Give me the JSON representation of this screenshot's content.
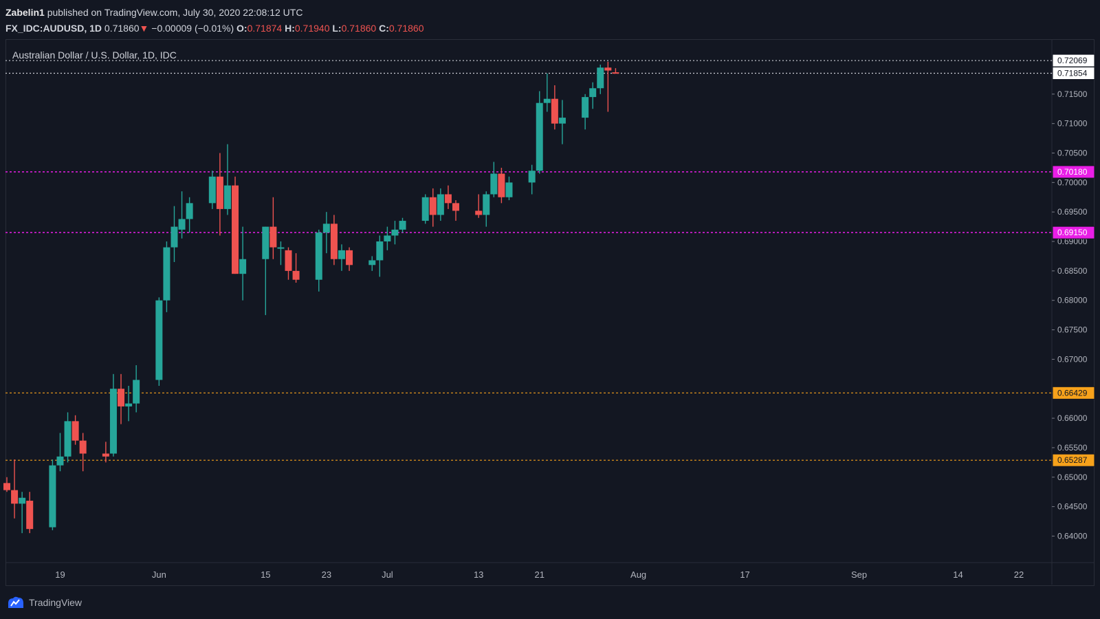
{
  "header": {
    "author": "Zabelin1",
    "published": "published on TradingView.com, July 30, 2020 22:08:12 UTC",
    "symbol": "FX_IDC:AUDUSD, 1D",
    "last": "0.71860",
    "arrow": "▼",
    "change": "−0.00009 (−0.01%)",
    "o_label": "O:",
    "o_val": "0.71874",
    "h_label": "H:",
    "h_val": "0.71940",
    "l_label": "L:",
    "l_val": "0.71860",
    "c_label": "C:",
    "c_val": "0.71860"
  },
  "legend": "Australian Dollar / U.S. Dollar, 1D, IDC",
  "footer": {
    "brand": "TradingView"
  },
  "colors": {
    "bg": "#131722",
    "up": "#26a69a",
    "down": "#ef5350",
    "grid": "#2a2e39",
    "magenta": "#e91ee6",
    "orange": "#f7a21b"
  },
  "chart_data": {
    "type": "candlestick",
    "ylim": [
      0.6355,
      0.7242
    ],
    "y_ticks": [
      "0.72069",
      "0.71854",
      "0.71500",
      "0.71000",
      "0.70500",
      "0.70180",
      "0.70000",
      "0.69500",
      "0.69150",
      "0.69000",
      "0.68500",
      "0.68000",
      "0.67500",
      "0.67000",
      "0.66429",
      "0.66000",
      "0.65500",
      "0.65287",
      "0.65000",
      "0.64500",
      "0.64000"
    ],
    "x_tick_labels": [
      {
        "label": "19",
        "date": "2020-05-19"
      },
      {
        "label": "Jun",
        "date": "2020-06-01"
      },
      {
        "label": "15",
        "date": "2020-06-15"
      },
      {
        "label": "23",
        "date": "2020-06-23"
      },
      {
        "label": "Jul",
        "date": "2020-07-01"
      },
      {
        "label": "13",
        "date": "2020-07-13"
      },
      {
        "label": "21",
        "date": "2020-07-21"
      },
      {
        "label": "Aug",
        "date": "2020-08-03"
      },
      {
        "label": "17",
        "date": "2020-08-17"
      },
      {
        "label": "Sep",
        "date": "2020-09-01"
      },
      {
        "label": "14",
        "date": "2020-09-14"
      },
      {
        "label": "22",
        "date": "2020-09-22"
      }
    ],
    "horizontal_lines": [
      {
        "value": 0.72069,
        "label": "0.72069",
        "style": "dotted-white"
      },
      {
        "value": 0.71854,
        "label": "0.71854",
        "style": "dotted-white"
      },
      {
        "value": 0.7018,
        "label": "0.70180",
        "style": "magenta"
      },
      {
        "value": 0.6915,
        "label": "0.69150",
        "style": "magenta"
      },
      {
        "value": 0.66429,
        "label": "0.66429",
        "style": "orange"
      },
      {
        "value": 0.65287,
        "label": "0.65287",
        "style": "orange"
      }
    ],
    "candles": [
      {
        "d": "2020-05-12",
        "o": 0.649,
        "h": 0.65,
        "l": 0.6475,
        "c": 0.6478
      },
      {
        "d": "2020-05-13",
        "o": 0.6478,
        "h": 0.653,
        "l": 0.643,
        "c": 0.6455
      },
      {
        "d": "2020-05-14",
        "o": 0.6455,
        "h": 0.6475,
        "l": 0.6405,
        "c": 0.6465
      },
      {
        "d": "2020-05-15",
        "o": 0.646,
        "h": 0.6475,
        "l": 0.6405,
        "c": 0.6412
      },
      {
        "d": "2020-05-18",
        "o": 0.6415,
        "h": 0.653,
        "l": 0.641,
        "c": 0.652
      },
      {
        "d": "2020-05-19",
        "o": 0.652,
        "h": 0.6575,
        "l": 0.651,
        "c": 0.6535
      },
      {
        "d": "2020-05-20",
        "o": 0.6535,
        "h": 0.661,
        "l": 0.6525,
        "c": 0.6595
      },
      {
        "d": "2020-05-21",
        "o": 0.6595,
        "h": 0.6605,
        "l": 0.6555,
        "c": 0.6562
      },
      {
        "d": "2020-05-22",
        "o": 0.6562,
        "h": 0.6575,
        "l": 0.651,
        "c": 0.654
      },
      {
        "d": "2020-05-25",
        "o": 0.654,
        "h": 0.656,
        "l": 0.6525,
        "c": 0.6535
      },
      {
        "d": "2020-05-26",
        "o": 0.654,
        "h": 0.6675,
        "l": 0.6535,
        "c": 0.665
      },
      {
        "d": "2020-05-27",
        "o": 0.665,
        "h": 0.6675,
        "l": 0.659,
        "c": 0.662
      },
      {
        "d": "2020-05-28",
        "o": 0.662,
        "h": 0.6655,
        "l": 0.6595,
        "c": 0.6625
      },
      {
        "d": "2020-05-29",
        "o": 0.6625,
        "h": 0.669,
        "l": 0.661,
        "c": 0.6665
      },
      {
        "d": "2020-06-01",
        "o": 0.6665,
        "h": 0.6805,
        "l": 0.6655,
        "c": 0.68
      },
      {
        "d": "2020-06-02",
        "o": 0.68,
        "h": 0.69,
        "l": 0.678,
        "c": 0.689
      },
      {
        "d": "2020-06-03",
        "o": 0.689,
        "h": 0.696,
        "l": 0.6865,
        "c": 0.6925
      },
      {
        "d": "2020-06-04",
        "o": 0.692,
        "h": 0.6985,
        "l": 0.6905,
        "c": 0.6938
      },
      {
        "d": "2020-06-05",
        "o": 0.6938,
        "h": 0.6975,
        "l": 0.6915,
        "c": 0.6965
      },
      {
        "d": "2020-06-08",
        "o": 0.6965,
        "h": 0.702,
        "l": 0.6955,
        "c": 0.701
      },
      {
        "d": "2020-06-09",
        "o": 0.701,
        "h": 0.705,
        "l": 0.691,
        "c": 0.6955
      },
      {
        "d": "2020-06-10",
        "o": 0.6955,
        "h": 0.7065,
        "l": 0.6945,
        "c": 0.6995
      },
      {
        "d": "2020-06-11",
        "o": 0.6995,
        "h": 0.701,
        "l": 0.6845,
        "c": 0.6845
      },
      {
        "d": "2020-06-12",
        "o": 0.6845,
        "h": 0.6925,
        "l": 0.68,
        "c": 0.687
      },
      {
        "d": "2020-06-15",
        "o": 0.687,
        "h": 0.6925,
        "l": 0.6775,
        "c": 0.6925
      },
      {
        "d": "2020-06-16",
        "o": 0.6925,
        "h": 0.6975,
        "l": 0.687,
        "c": 0.689
      },
      {
        "d": "2020-06-17",
        "o": 0.689,
        "h": 0.69,
        "l": 0.686,
        "c": 0.689
      },
      {
        "d": "2020-06-18",
        "o": 0.6885,
        "h": 0.689,
        "l": 0.6835,
        "c": 0.685
      },
      {
        "d": "2020-06-19",
        "o": 0.685,
        "h": 0.688,
        "l": 0.683,
        "c": 0.6835
      },
      {
        "d": "2020-06-22",
        "o": 0.6835,
        "h": 0.692,
        "l": 0.6815,
        "c": 0.6915
      },
      {
        "d": "2020-06-23",
        "o": 0.6915,
        "h": 0.695,
        "l": 0.688,
        "c": 0.693
      },
      {
        "d": "2020-06-24",
        "o": 0.693,
        "h": 0.6945,
        "l": 0.686,
        "c": 0.687
      },
      {
        "d": "2020-06-25",
        "o": 0.687,
        "h": 0.6895,
        "l": 0.685,
        "c": 0.6885
      },
      {
        "d": "2020-06-26",
        "o": 0.6885,
        "h": 0.689,
        "l": 0.685,
        "c": 0.686
      },
      {
        "d": "2020-06-29",
        "o": 0.686,
        "h": 0.6875,
        "l": 0.685,
        "c": 0.6868
      },
      {
        "d": "2020-06-30",
        "o": 0.6868,
        "h": 0.691,
        "l": 0.684,
        "c": 0.69
      },
      {
        "d": "2020-07-01",
        "o": 0.69,
        "h": 0.6925,
        "l": 0.6885,
        "c": 0.691
      },
      {
        "d": "2020-07-02",
        "o": 0.691,
        "h": 0.6935,
        "l": 0.6895,
        "c": 0.692
      },
      {
        "d": "2020-07-03",
        "o": 0.692,
        "h": 0.694,
        "l": 0.6915,
        "c": 0.6935
      },
      {
        "d": "2020-07-06",
        "o": 0.6935,
        "h": 0.698,
        "l": 0.693,
        "c": 0.6975
      },
      {
        "d": "2020-07-07",
        "o": 0.6975,
        "h": 0.699,
        "l": 0.6925,
        "c": 0.6945
      },
      {
        "d": "2020-07-08",
        "o": 0.6945,
        "h": 0.699,
        "l": 0.6935,
        "c": 0.698
      },
      {
        "d": "2020-07-09",
        "o": 0.698,
        "h": 0.6995,
        "l": 0.6955,
        "c": 0.6965
      },
      {
        "d": "2020-07-10",
        "o": 0.6965,
        "h": 0.697,
        "l": 0.6935,
        "c": 0.6952
      },
      {
        "d": "2020-07-13",
        "o": 0.6952,
        "h": 0.698,
        "l": 0.694,
        "c": 0.6945
      },
      {
        "d": "2020-07-14",
        "o": 0.6945,
        "h": 0.6985,
        "l": 0.6925,
        "c": 0.698
      },
      {
        "d": "2020-07-15",
        "o": 0.698,
        "h": 0.7035,
        "l": 0.6975,
        "c": 0.7015
      },
      {
        "d": "2020-07-16",
        "o": 0.7015,
        "h": 0.7025,
        "l": 0.6965,
        "c": 0.6975
      },
      {
        "d": "2020-07-17",
        "o": 0.6975,
        "h": 0.701,
        "l": 0.697,
        "c": 0.7
      },
      {
        "d": "2020-07-20",
        "o": 0.7,
        "h": 0.703,
        "l": 0.698,
        "c": 0.702
      },
      {
        "d": "2020-07-21",
        "o": 0.702,
        "h": 0.7155,
        "l": 0.7015,
        "c": 0.7135
      },
      {
        "d": "2020-07-22",
        "o": 0.7135,
        "h": 0.7185,
        "l": 0.712,
        "c": 0.7142
      },
      {
        "d": "2020-07-23",
        "o": 0.7142,
        "h": 0.7165,
        "l": 0.709,
        "c": 0.71
      },
      {
        "d": "2020-07-24",
        "o": 0.71,
        "h": 0.714,
        "l": 0.7065,
        "c": 0.711
      },
      {
        "d": "2020-07-27",
        "o": 0.711,
        "h": 0.715,
        "l": 0.709,
        "c": 0.7145
      },
      {
        "d": "2020-07-28",
        "o": 0.7145,
        "h": 0.717,
        "l": 0.7125,
        "c": 0.716
      },
      {
        "d": "2020-07-29",
        "o": 0.716,
        "h": 0.72,
        "l": 0.715,
        "c": 0.7195
      },
      {
        "d": "2020-07-30",
        "o": 0.7195,
        "h": 0.7205,
        "l": 0.712,
        "c": 0.719
      },
      {
        "d": "2020-07-31",
        "o": 0.7187,
        "h": 0.7194,
        "l": 0.7186,
        "c": 0.7186
      }
    ]
  }
}
